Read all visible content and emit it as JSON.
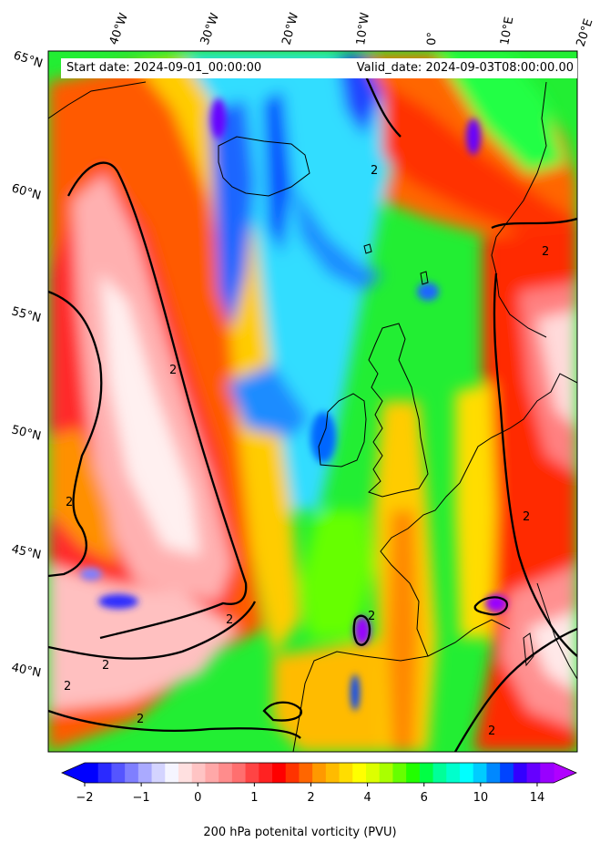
{
  "header": {
    "start_date": "Start date: 2024-09-01_00:00:00",
    "valid_date": "Valid_date: 2024-09-03T08:00:00.00"
  },
  "lon_labels": [
    "40°W",
    "30°W",
    "20°W",
    "10°W",
    "0°",
    "10°E",
    "20°E"
  ],
  "lat_labels": [
    "65°N",
    "60°N",
    "55°N",
    "50°N",
    "45°N",
    "40°N"
  ],
  "contour_label": "2",
  "colorbar": {
    "title": "200 hPa potenital vorticity (PVU)",
    "tick_labels": [
      "−2",
      "−1",
      "0",
      "1",
      "2",
      "4",
      "6",
      "10",
      "14"
    ],
    "colors": [
      "#0000ff",
      "#2a2aff",
      "#5555ff",
      "#7f7fff",
      "#aaaaff",
      "#d4d4ff",
      "#f5f5ff",
      "#ffe0e0",
      "#ffc4c4",
      "#ffa8a8",
      "#ff8c8c",
      "#ff6f6f",
      "#ff4444",
      "#ff2222",
      "#ff0000",
      "#ff3300",
      "#ff6600",
      "#ff9900",
      "#ffbb00",
      "#ffdd00",
      "#ffff00",
      "#ddff00",
      "#aaff00",
      "#66ff00",
      "#22ff00",
      "#00ff44",
      "#00ff99",
      "#00ffcc",
      "#00ffff",
      "#00ccff",
      "#0088ff",
      "#0044ff",
      "#3300ff",
      "#6600ff",
      "#9900ff"
    ],
    "under_color": "#0000ff",
    "over_color": "#b000ff"
  }
}
